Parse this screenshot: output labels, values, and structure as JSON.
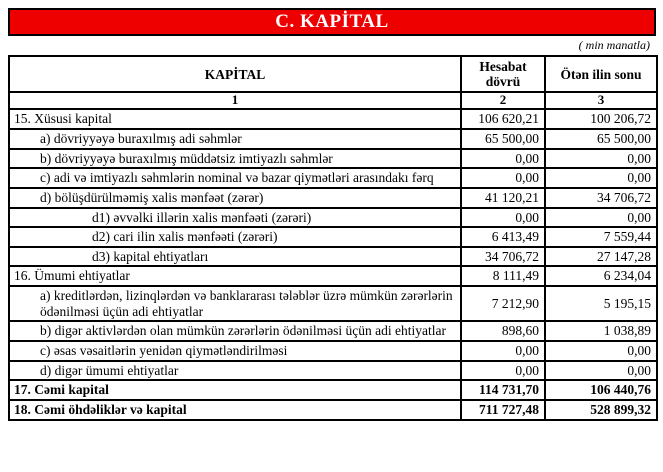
{
  "banner": {
    "title": "C. KAPİTAL",
    "bg_color": "#ee0000",
    "text_color": "#ffffff"
  },
  "note": "( min manatla)",
  "table": {
    "header": {
      "col1": "KAPİTAL",
      "col2": "Hesabat dövrü",
      "col3": "Ötən ilin sonu"
    },
    "index_row": [
      "1",
      "2",
      "3"
    ],
    "rows": [
      {
        "label": "15. Xüsusi kapital",
        "indent": 0,
        "bold": false,
        "current": "106 620,21",
        "previous": "100 206,72"
      },
      {
        "label": "a) dövriyyəyə buraxılmış adi səhmlər",
        "indent": 1,
        "bold": false,
        "current": "65 500,00",
        "previous": "65 500,00"
      },
      {
        "label": "b) dövriyyəyə buraxılmış müddətsiz imtiyazlı səhmlər",
        "indent": 1,
        "bold": false,
        "current": "0,00",
        "previous": "0,00"
      },
      {
        "label": "c) adi və imtiyazlı səhmlərin nominal və bazar qiymətləri arasındakı fərq",
        "indent": 1,
        "bold": false,
        "current": "0,00",
        "previous": "0,00"
      },
      {
        "label": "d) bölüşdürülməmiş xalis mənfəət (zərər)",
        "indent": 1,
        "bold": false,
        "current": "41 120,21",
        "previous": "34 706,72"
      },
      {
        "label": "d1) əvvəlki illərin xalis mənfəəti (zərəri)",
        "indent": 2,
        "bold": false,
        "current": "0,00",
        "previous": "0,00"
      },
      {
        "label": "d2) cari ilin xalis mənfəəti (zərəri)",
        "indent": 2,
        "bold": false,
        "current": "6 413,49",
        "previous": "7 559,44"
      },
      {
        "label": "d3) kapital ehtiyatları",
        "indent": 2,
        "bold": false,
        "current": "34 706,72",
        "previous": "27 147,28"
      },
      {
        "label": "16. Ümumi ehtiyatlar",
        "indent": 0,
        "bold": false,
        "current": "8 111,49",
        "previous": "6 234,04"
      },
      {
        "label": "a) kreditlərdən, lizinqlərdən və banklararası  tələblər üzrə mümkün zərərlərin ödənilməsi üçün adi ehtiyatlar",
        "indent": 1,
        "bold": false,
        "current": "7 212,90",
        "previous": "5 195,15"
      },
      {
        "label": "b) digər aktivlərdən olan mümkün zərərlərin ödənilməsi üçün adi ehtiyatlar",
        "indent": 1,
        "bold": false,
        "current": "898,60",
        "previous": "1 038,89"
      },
      {
        "label": "c) əsas vəsaitlərin yenidən qiymətləndirilməsi",
        "indent": 1,
        "bold": false,
        "current": "0,00",
        "previous": "0,00"
      },
      {
        "label": "d) digər ümumi ehtiyatlar",
        "indent": 1,
        "bold": false,
        "current": "0,00",
        "previous": "0,00"
      },
      {
        "label": "17. Cəmi kapital",
        "indent": 0,
        "bold": true,
        "current": "114 731,70",
        "previous": "106 440,76"
      },
      {
        "label": "18. Cəmi öhdəliklər və kapital",
        "indent": 0,
        "bold": true,
        "current": "711 727,48",
        "previous": "528 899,32"
      }
    ]
  }
}
